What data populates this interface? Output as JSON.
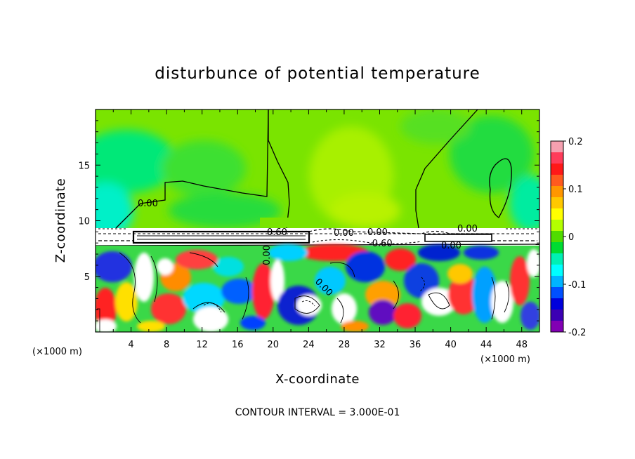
{
  "chart_data": {
    "type": "heatmap",
    "title": "disturbunce of potential temperature",
    "xlabel": "X-coordinate",
    "ylabel": "Z-coordinate",
    "x_unit": "(×1000 m)",
    "z_unit": "(×1000 m)",
    "xlim": [
      0,
      50
    ],
    "ylim": [
      0,
      20
    ],
    "x_ticks": [
      "4",
      "8",
      "12",
      "16",
      "20",
      "24",
      "28",
      "32",
      "36",
      "40",
      "44",
      "48"
    ],
    "y_ticks": [
      "5",
      "10",
      "15"
    ],
    "colorbar": {
      "range": [
        -0.2,
        0.2
      ],
      "ticks": [
        "0.2",
        "0.1",
        "0",
        "-0.1",
        "-0.2"
      ],
      "colors": [
        "#f5a0b0",
        "#ff3c5a",
        "#ff1818",
        "#ff5a1e",
        "#ff9600",
        "#ffc800",
        "#ffff00",
        "#b4ff00",
        "#50dc00",
        "#00dc32",
        "#00f0b4",
        "#00ffff",
        "#00b4ff",
        "#0050ff",
        "#0000dc",
        "#3c00b4",
        "#8200b4"
      ]
    },
    "contour_labels": [
      "0.00",
      "0.60",
      "0.00",
      "0.00",
      "-0.60",
      "0.00",
      "0.00",
      "0.00",
      "0.00"
    ],
    "footnote": "CONTOUR INTERVAL = 3.000E-01"
  }
}
